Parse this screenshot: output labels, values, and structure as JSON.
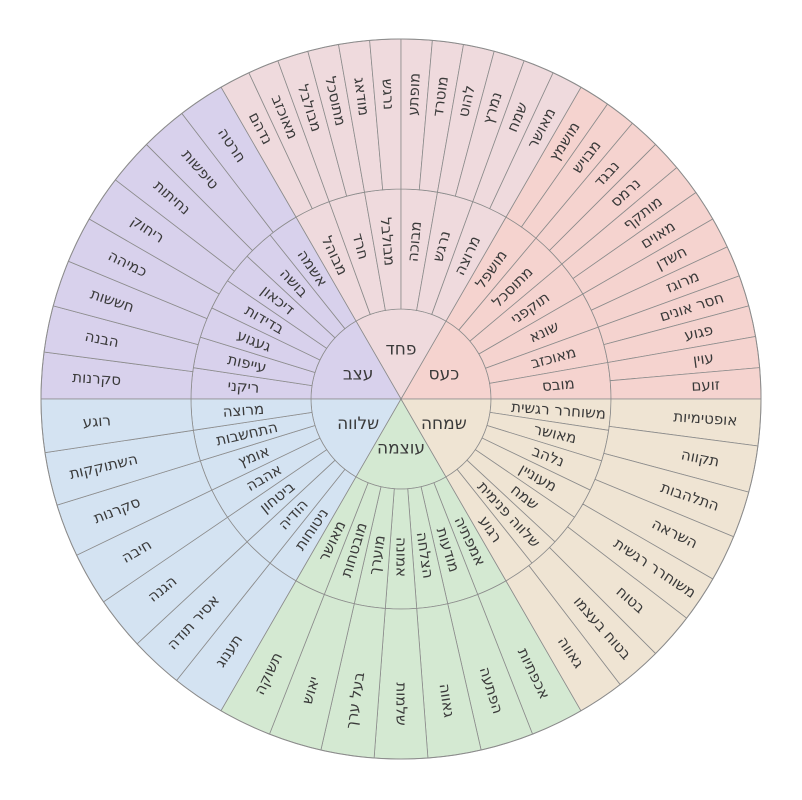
{
  "wheel": {
    "sectors": [
      {
        "core": "כעס",
        "color": "#f5d3cf",
        "children": [
          {
            "mid": "מושפל",
            "outer": [
              "מושמץ",
              "מבויש"
            ]
          },
          {
            "mid": "מתוסכל",
            "outer": [
              "נבגד",
              "נרמס"
            ]
          },
          {
            "mid": "תוקפני",
            "outer": [
              "מותקף",
              "מאוים"
            ]
          },
          {
            "mid": "שונא",
            "outer": [
              "חשדן",
              "מרוגז"
            ]
          },
          {
            "mid": "מאוכזב",
            "outer": [
              "חסר אונים",
              "פגוע"
            ]
          },
          {
            "mid": "מובס",
            "outer": [
              "עוין",
              "זועם"
            ]
          }
        ]
      },
      {
        "core": "פחד",
        "color": "#efdadd",
        "children": [
          {
            "mid": "מבוהל",
            "outer": [
              "נדהם",
              "מאוכזב"
            ]
          },
          {
            "mid": "חרד",
            "outer": [
              "מבולבל",
              "מתוסכל"
            ]
          },
          {
            "mid": "מבולבל",
            "outer": [
              "מודאג",
              "נרגש"
            ]
          },
          {
            "mid": "מבוכה",
            "outer": [
              "מופתע",
              "מוטרד"
            ]
          },
          {
            "mid": "נרגש",
            "outer": [
              "להוט",
              "נמרץ"
            ]
          },
          {
            "mid": "מרוצה",
            "outer": [
              "שמח",
              "מאושר"
            ]
          }
        ]
      },
      {
        "core": "עצב",
        "color": "#d8d1ec",
        "children": [
          {
            "mid": "ריקני",
            "outer": [
              "סקרנות",
              "הבנה"
            ]
          },
          {
            "mid": "עייפות",
            "outer": [
              "חששות",
              "כמיהה"
            ]
          },
          {
            "mid": "געגוע",
            "outer": [
              "ריחוק",
              "נחיתות"
            ]
          },
          {
            "mid": "בדידות",
            "outer": [
              "טיפשות",
              "חרטה"
            ]
          },
          {
            "mid": "דיכאון",
            "outer": []
          },
          {
            "mid": "בושה",
            "outer": []
          },
          {
            "mid": "אשמה",
            "outer": []
          }
        ]
      },
      {
        "core": "שלווה",
        "color": "#d4e3f2",
        "children": [
          {
            "mid": "ניטוחות",
            "outer": [
              "תענוג",
              "אסיר תודה"
            ]
          },
          {
            "mid": "הודיה",
            "outer": [
              "הגנה",
              "חיבה"
            ]
          },
          {
            "mid": "ביטחון",
            "outer": [
              "סקרנות",
              "השתוקקות"
            ]
          },
          {
            "mid": "אהבה",
            "outer": [
              "רוגע"
            ]
          },
          {
            "mid": "אומץ",
            "outer": []
          },
          {
            "mid": "התחשבות",
            "outer": []
          },
          {
            "mid": "מרוצה",
            "outer": []
          }
        ]
      },
      {
        "core": "עוצמה",
        "color": "#d4e9d2",
        "children": [
          {
            "mid": "אמפתיה",
            "outer": [
              "אכפתיות",
              "הפתעה"
            ]
          },
          {
            "mid": "מודעות",
            "outer": [
              "גאווה",
              "שלמות"
            ]
          },
          {
            "mid": "הצלחה",
            "outer": [
              "בעל ערך",
              "יאוש"
            ]
          },
          {
            "mid": "אמונה",
            "outer": [
              "תשוקה"
            ]
          },
          {
            "mid": "מוערך",
            "outer": []
          },
          {
            "mid": "מובטחות",
            "outer": []
          },
          {
            "mid": "מאושר",
            "outer": []
          }
        ]
      },
      {
        "core": "שמחה",
        "color": "#efe4d3",
        "children": [
          {
            "mid": "משוחרר רגשית",
            "outer": [
              "אופטימיות",
              "תקווה"
            ]
          },
          {
            "mid": "מאושר",
            "outer": [
              "התלהבות",
              "השראה"
            ]
          },
          {
            "mid": "נלהב",
            "outer": [
              "משוחרר רגשית",
              "בטוח"
            ]
          },
          {
            "mid": "מעוניין",
            "outer": [
              "בטוח בעצמו",
              "גאווה"
            ]
          },
          {
            "mid": "שמח",
            "outer": []
          },
          {
            "mid": "שלווה פנימית",
            "outer": []
          },
          {
            "mid": "רגוע",
            "outer": []
          }
        ]
      }
    ]
  }
}
